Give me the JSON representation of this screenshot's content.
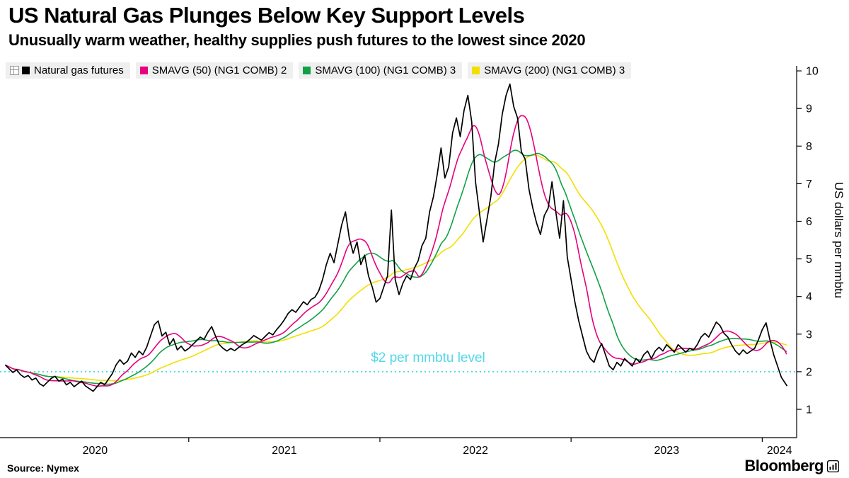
{
  "header": {
    "title": "US Natural Gas Plunges Below Key Support Levels",
    "subtitle": "Unusually warm weather, healthy supplies push futures to the lowest since 2020"
  },
  "legend": {
    "items": [
      {
        "label": "Natural gas futures",
        "color": "#000000"
      },
      {
        "label": "SMAVG (50) (NG1 COMB) 2",
        "color": "#e6007e"
      },
      {
        "label": "SMAVG (100) (NG1 COMB) 3",
        "color": "#12a046"
      },
      {
        "label": "SMAVG (200) (NG1 COMB) 3",
        "color": "#f2df00"
      }
    ]
  },
  "chart_data": {
    "type": "line",
    "title": "US Natural Gas Plunges Below Key Support Levels",
    "x_unit": "decimal_year",
    "xlim": [
      2020.02,
      2024.18
    ],
    "ylim": [
      0.7,
      10.3
    ],
    "x_ticks": [
      2020,
      2021,
      2022,
      2023,
      2024
    ],
    "y_ticks": [
      1,
      2,
      3,
      4,
      5,
      6,
      7,
      8,
      9,
      10
    ],
    "ylabel": "US dollars per mmbtu",
    "grid": false,
    "legend_position": "top",
    "threshold": {
      "value": 2,
      "label": "$2 per mmbtu level",
      "color": "#4fd8e8"
    },
    "series": [
      {
        "name": "Natural gas futures",
        "color": "#000000",
        "points": [
          [
            2020.04,
            2.18
          ],
          [
            2020.06,
            2.08
          ],
          [
            2020.08,
            1.98
          ],
          [
            2020.1,
            2.05
          ],
          [
            2020.12,
            1.92
          ],
          [
            2020.14,
            1.85
          ],
          [
            2020.16,
            1.9
          ],
          [
            2020.18,
            1.78
          ],
          [
            2020.2,
            1.83
          ],
          [
            2020.22,
            1.68
          ],
          [
            2020.24,
            1.62
          ],
          [
            2020.26,
            1.72
          ],
          [
            2020.28,
            1.82
          ],
          [
            2020.3,
            1.88
          ],
          [
            2020.32,
            1.75
          ],
          [
            2020.34,
            1.8
          ],
          [
            2020.36,
            1.65
          ],
          [
            2020.38,
            1.72
          ],
          [
            2020.4,
            1.6
          ],
          [
            2020.42,
            1.68
          ],
          [
            2020.44,
            1.75
          ],
          [
            2020.46,
            1.62
          ],
          [
            2020.48,
            1.55
          ],
          [
            2020.5,
            1.48
          ],
          [
            2020.52,
            1.6
          ],
          [
            2020.54,
            1.72
          ],
          [
            2020.56,
            1.65
          ],
          [
            2020.58,
            1.8
          ],
          [
            2020.6,
            1.95
          ],
          [
            2020.62,
            2.18
          ],
          [
            2020.64,
            2.32
          ],
          [
            2020.66,
            2.2
          ],
          [
            2020.68,
            2.28
          ],
          [
            2020.7,
            2.5
          ],
          [
            2020.72,
            2.38
          ],
          [
            2020.74,
            2.55
          ],
          [
            2020.76,
            2.45
          ],
          [
            2020.78,
            2.65
          ],
          [
            2020.8,
            2.95
          ],
          [
            2020.82,
            3.25
          ],
          [
            2020.84,
            3.35
          ],
          [
            2020.86,
            2.95
          ],
          [
            2020.88,
            3.05
          ],
          [
            2020.9,
            2.72
          ],
          [
            2020.92,
            2.88
          ],
          [
            2020.94,
            2.58
          ],
          [
            2020.96,
            2.68
          ],
          [
            2020.98,
            2.55
          ],
          [
            2021.0,
            2.62
          ],
          [
            2021.02,
            2.72
          ],
          [
            2021.04,
            2.82
          ],
          [
            2021.06,
            2.92
          ],
          [
            2021.08,
            2.86
          ],
          [
            2021.1,
            3.05
          ],
          [
            2021.12,
            3.2
          ],
          [
            2021.14,
            2.95
          ],
          [
            2021.16,
            2.72
          ],
          [
            2021.18,
            2.62
          ],
          [
            2021.2,
            2.55
          ],
          [
            2021.22,
            2.62
          ],
          [
            2021.24,
            2.56
          ],
          [
            2021.26,
            2.64
          ],
          [
            2021.28,
            2.72
          ],
          [
            2021.3,
            2.78
          ],
          [
            2021.32,
            2.86
          ],
          [
            2021.34,
            2.96
          ],
          [
            2021.36,
            2.9
          ],
          [
            2021.38,
            2.84
          ],
          [
            2021.4,
            2.94
          ],
          [
            2021.42,
            3.04
          ],
          [
            2021.44,
            2.98
          ],
          [
            2021.46,
            3.12
          ],
          [
            2021.48,
            3.24
          ],
          [
            2021.5,
            3.38
          ],
          [
            2021.52,
            3.55
          ],
          [
            2021.54,
            3.65
          ],
          [
            2021.56,
            3.58
          ],
          [
            2021.58,
            3.72
          ],
          [
            2021.6,
            3.86
          ],
          [
            2021.62,
            3.78
          ],
          [
            2021.64,
            3.92
          ],
          [
            2021.66,
            3.98
          ],
          [
            2021.68,
            4.15
          ],
          [
            2021.7,
            4.45
          ],
          [
            2021.72,
            4.85
          ],
          [
            2021.74,
            5.15
          ],
          [
            2021.76,
            4.9
          ],
          [
            2021.78,
            5.4
          ],
          [
            2021.8,
            5.9
          ],
          [
            2021.82,
            6.25
          ],
          [
            2021.84,
            5.55
          ],
          [
            2021.86,
            5.15
          ],
          [
            2021.88,
            5.45
          ],
          [
            2021.9,
            4.85
          ],
          [
            2021.92,
            5.1
          ],
          [
            2021.94,
            4.55
          ],
          [
            2021.96,
            4.25
          ],
          [
            2021.98,
            3.85
          ],
          [
            2022.0,
            3.95
          ],
          [
            2022.02,
            4.25
          ],
          [
            2022.04,
            4.55
          ],
          [
            2022.06,
            6.3
          ],
          [
            2022.08,
            4.45
          ],
          [
            2022.1,
            4.05
          ],
          [
            2022.12,
            4.35
          ],
          [
            2022.14,
            4.55
          ],
          [
            2022.16,
            4.45
          ],
          [
            2022.18,
            4.75
          ],
          [
            2022.2,
            4.95
          ],
          [
            2022.22,
            5.35
          ],
          [
            2022.24,
            5.55
          ],
          [
            2022.26,
            6.25
          ],
          [
            2022.28,
            6.65
          ],
          [
            2022.3,
            7.25
          ],
          [
            2022.32,
            7.95
          ],
          [
            2022.34,
            7.15
          ],
          [
            2022.36,
            7.45
          ],
          [
            2022.38,
            8.35
          ],
          [
            2022.4,
            8.75
          ],
          [
            2022.42,
            8.25
          ],
          [
            2022.44,
            8.95
          ],
          [
            2022.46,
            9.35
          ],
          [
            2022.48,
            8.65
          ],
          [
            2022.5,
            7.05
          ],
          [
            2022.52,
            6.25
          ],
          [
            2022.54,
            5.45
          ],
          [
            2022.56,
            6.05
          ],
          [
            2022.58,
            6.65
          ],
          [
            2022.6,
            7.55
          ],
          [
            2022.62,
            8.05
          ],
          [
            2022.64,
            8.85
          ],
          [
            2022.66,
            9.35
          ],
          [
            2022.68,
            9.65
          ],
          [
            2022.7,
            9.05
          ],
          [
            2022.72,
            8.75
          ],
          [
            2022.74,
            7.85
          ],
          [
            2022.76,
            7.65
          ],
          [
            2022.78,
            6.85
          ],
          [
            2022.8,
            6.35
          ],
          [
            2022.82,
            5.95
          ],
          [
            2022.84,
            5.65
          ],
          [
            2022.86,
            6.15
          ],
          [
            2022.88,
            6.35
          ],
          [
            2022.9,
            7.05
          ],
          [
            2022.92,
            6.25
          ],
          [
            2022.94,
            5.55
          ],
          [
            2022.96,
            6.55
          ],
          [
            2022.98,
            5.05
          ],
          [
            2023.0,
            4.45
          ],
          [
            2023.02,
            3.85
          ],
          [
            2023.04,
            3.35
          ],
          [
            2023.06,
            2.95
          ],
          [
            2023.08,
            2.55
          ],
          [
            2023.1,
            2.35
          ],
          [
            2023.12,
            2.25
          ],
          [
            2023.14,
            2.55
          ],
          [
            2023.16,
            2.75
          ],
          [
            2023.18,
            2.45
          ],
          [
            2023.2,
            2.15
          ],
          [
            2023.22,
            2.05
          ],
          [
            2023.24,
            2.25
          ],
          [
            2023.26,
            2.15
          ],
          [
            2023.28,
            2.35
          ],
          [
            2023.3,
            2.25
          ],
          [
            2023.32,
            2.15
          ],
          [
            2023.34,
            2.35
          ],
          [
            2023.36,
            2.25
          ],
          [
            2023.38,
            2.45
          ],
          [
            2023.4,
            2.55
          ],
          [
            2023.42,
            2.35
          ],
          [
            2023.44,
            2.55
          ],
          [
            2023.46,
            2.65
          ],
          [
            2023.48,
            2.55
          ],
          [
            2023.5,
            2.72
          ],
          [
            2023.52,
            2.62
          ],
          [
            2023.54,
            2.52
          ],
          [
            2023.56,
            2.72
          ],
          [
            2023.58,
            2.62
          ],
          [
            2023.6,
            2.52
          ],
          [
            2023.62,
            2.62
          ],
          [
            2023.64,
            2.58
          ],
          [
            2023.66,
            2.72
          ],
          [
            2023.68,
            2.92
          ],
          [
            2023.7,
            3.02
          ],
          [
            2023.72,
            2.92
          ],
          [
            2023.74,
            3.12
          ],
          [
            2023.76,
            3.32
          ],
          [
            2023.78,
            3.22
          ],
          [
            2023.8,
            3.02
          ],
          [
            2023.82,
            2.92
          ],
          [
            2023.84,
            2.72
          ],
          [
            2023.86,
            2.55
          ],
          [
            2023.88,
            2.45
          ],
          [
            2023.9,
            2.58
          ],
          [
            2023.92,
            2.48
          ],
          [
            2023.94,
            2.55
          ],
          [
            2023.96,
            2.62
          ],
          [
            2023.98,
            2.85
          ],
          [
            2024.0,
            3.12
          ],
          [
            2024.02,
            3.3
          ],
          [
            2024.04,
            2.85
          ],
          [
            2024.06,
            2.45
          ],
          [
            2024.08,
            2.15
          ],
          [
            2024.1,
            1.85
          ],
          [
            2024.13,
            1.62
          ]
        ]
      },
      {
        "name": "SMAVG (50) (NG1 COMB) 2",
        "color": "#e6007e",
        "window_days": 50,
        "derived_from": "Natural gas futures"
      },
      {
        "name": "SMAVG (100) (NG1 COMB) 3",
        "color": "#12a046",
        "window_days": 100,
        "derived_from": "Natural gas futures"
      },
      {
        "name": "SMAVG (200) (NG1 COMB) 3",
        "color": "#f2df00",
        "window_days": 200,
        "derived_from": "Natural gas futures"
      }
    ]
  },
  "footer": {
    "source": "Source: Nymex",
    "brand": "Bloomberg"
  }
}
